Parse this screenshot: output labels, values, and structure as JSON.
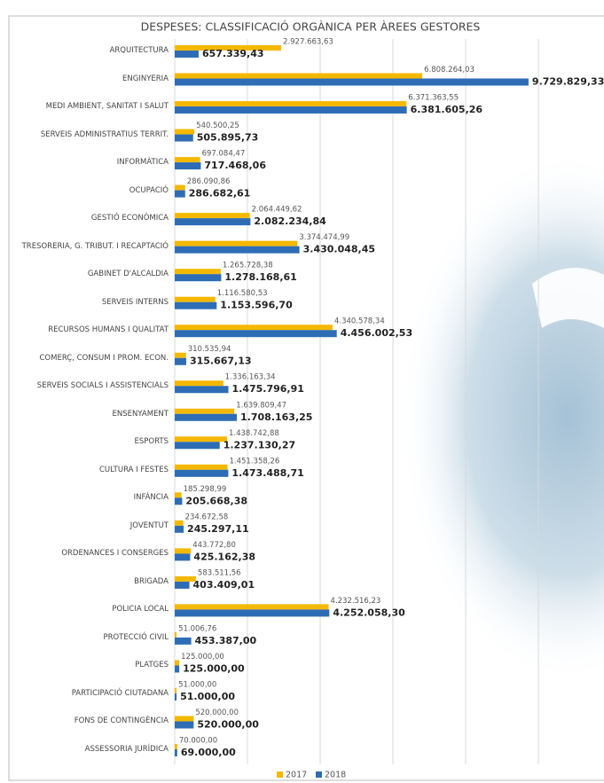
{
  "chart_data": {
    "type": "hbar",
    "title": "DESPESES: CLASSIFICACIÓ ORGÀNICA PER ÀREES GESTORES",
    "categories": [
      "ARQUITECTURA",
      "ENGINYERIA",
      "MEDI AMBIENT, SANITAT I SALUT",
      "SERVEIS ADMINISTRATIUS TERRIT.",
      "INFORMÀTICA",
      "OCUPACIÓ",
      "GESTIÓ ECONÒMICA",
      "TRESORERIA, G. TRIBUT. I RECAPTACIÓ",
      "GABINET D'ALCALDIA",
      "SERVEIS INTERNS",
      "RECURSOS HUMANS I QUALITAT",
      "COMERÇ, CONSUM I PROM. ECON.",
      "SERVEIS SOCIALS I ASSISTENCIALS",
      "ENSENYAMENT",
      "ESPORTS",
      "CULTURA I FESTES",
      "INFÀNCIA",
      "JOVENTUT",
      "ORDENANCES I CONSERGES",
      "BRIGADA",
      "POLICIA LOCAL",
      "PROTECCIÓ CIVIL",
      "PLATGES",
      "PARTICIPACIÓ CIUTADANA",
      "FONS DE CONTINGÈNCIA",
      "ASSESSORIA JURÍDICA"
    ],
    "series": [
      {
        "name": "2017",
        "color": "#f5b800",
        "values": [
          2927663.63,
          6808264.03,
          6371363.55,
          540500.25,
          697084.47,
          286090.86,
          2064449.62,
          3374474.99,
          1265728.38,
          1116580.53,
          4340578.34,
          310535.94,
          1336163.34,
          1639809.47,
          1438742.88,
          1451358.26,
          185298.99,
          234672.58,
          443772.8,
          583511.56,
          4232516.23,
          51006.76,
          125000,
          51000,
          520000,
          70000
        ],
        "value_labels": [
          "2.927.663,63",
          "6.808.264,03",
          "6.371.363,55",
          "540.500,25",
          "697.084,47",
          "286.090,86",
          "2.064.449,62",
          "3.374.474,99",
          "1.265.728,38",
          "1.116.580,53",
          "4.340.578,34",
          "310.535,94",
          "1.336.163,34",
          "1.639.809,47",
          "1.438.742,88",
          "1.451.358,26",
          "185.298,99",
          "234.672,58",
          "443.772,80",
          "583.511,56",
          "4.232.516,23",
          "51.006,76",
          "125.000,00",
          "51.000,00",
          "520.000,00",
          "70.000,00"
        ]
      },
      {
        "name": "2018",
        "color": "#2e6db5",
        "values": [
          657339.43,
          9729829.33,
          6381605.26,
          505895.73,
          717468.06,
          286682.61,
          2082234.84,
          3430048.45,
          1278168.61,
          1153596.7,
          4456002.53,
          315667.13,
          1475796.91,
          1708163.25,
          1237130.27,
          1473488.71,
          205668.38,
          245297.11,
          425162.38,
          403409.01,
          4252058.3,
          453387,
          125000,
          51000,
          520000,
          69000
        ],
        "value_labels": [
          "657.339,43",
          "9.729.829,33",
          "6.381.605,26",
          "505.895,73",
          "717.468,06",
          "286.682,61",
          "2.082.234,84",
          "3.430.048,45",
          "1.278.168,61",
          "1.153.596,70",
          "4.456.002,53",
          "315.667,13",
          "1.475.796,91",
          "1.708.163,25",
          "1.237.130,27",
          "1.473.488,71",
          "205.668,38",
          "245.297,11",
          "425.162,38",
          "403.409,01",
          "4.252.058,30",
          "453.387,00",
          "125.000,00",
          "51.000,00",
          "520.000,00",
          "69.000,00"
        ]
      }
    ],
    "xlim": [
      0,
      12000000
    ],
    "xticks": [
      0,
      2000000,
      4000000,
      6000000,
      8000000,
      10000000,
      12000000
    ],
    "grid": true,
    "legend": "bottom"
  }
}
